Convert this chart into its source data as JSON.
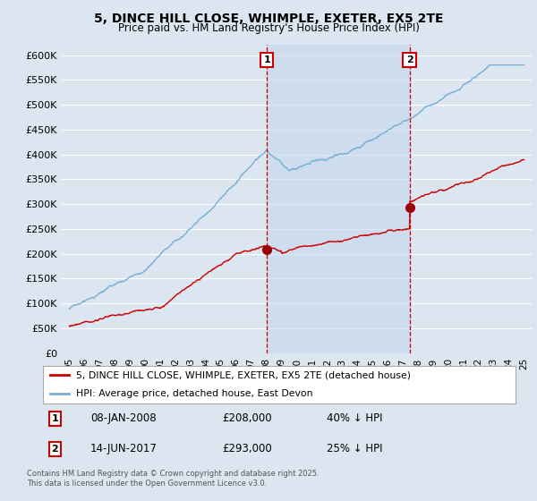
{
  "title": "5, DINCE HILL CLOSE, WHIMPLE, EXETER, EX5 2TE",
  "subtitle": "Price paid vs. HM Land Registry's House Price Index (HPI)",
  "xlim": [
    1994.5,
    2025.5
  ],
  "ylim": [
    0,
    620000
  ],
  "yticks": [
    0,
    50000,
    100000,
    150000,
    200000,
    250000,
    300000,
    350000,
    400000,
    450000,
    500000,
    550000,
    600000
  ],
  "ytick_labels": [
    "£0",
    "£50K",
    "£100K",
    "£150K",
    "£200K",
    "£250K",
    "£300K",
    "£350K",
    "£400K",
    "£450K",
    "£500K",
    "£550K",
    "£600K"
  ],
  "xticks": [
    1995,
    1996,
    1997,
    1998,
    1999,
    2000,
    2001,
    2002,
    2003,
    2004,
    2005,
    2006,
    2007,
    2008,
    2009,
    2010,
    2011,
    2012,
    2013,
    2014,
    2015,
    2016,
    2017,
    2018,
    2019,
    2020,
    2021,
    2022,
    2023,
    2024,
    2025
  ],
  "bg_color": "#dce6f1",
  "plot_bg_color": "#dce6f1",
  "grid_color": "#ffffff",
  "hpi_color": "#7bafd4",
  "price_color": "#cc0000",
  "marker_color": "#990000",
  "shade_color": "#c5d8ed",
  "sale1_x": 2008.03,
  "sale1_y": 208000,
  "sale2_x": 2017.45,
  "sale2_y": 293000,
  "legend_line1": "5, DINCE HILL CLOSE, WHIMPLE, EXETER, EX5 2TE (detached house)",
  "legend_line2": "HPI: Average price, detached house, East Devon",
  "sale1_date": "08-JAN-2008",
  "sale1_price": "£208,000",
  "sale1_hpi": "40% ↓ HPI",
  "sale2_date": "14-JUN-2017",
  "sale2_price": "£293,000",
  "sale2_hpi": "25% ↓ HPI",
  "footnote": "Contains HM Land Registry data © Crown copyright and database right 2025.\nThis data is licensed under the Open Government Licence v3.0."
}
